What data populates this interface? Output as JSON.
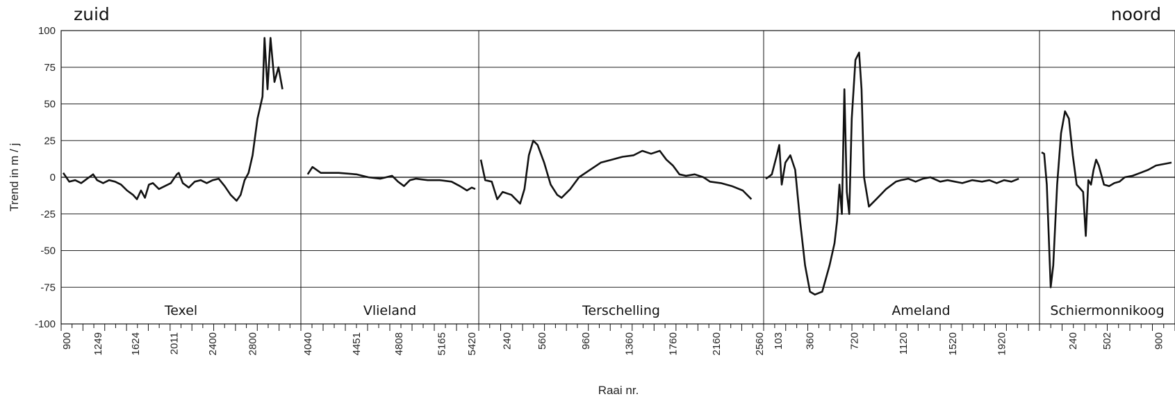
{
  "corner_labels": {
    "left": "zuid",
    "right": "noord"
  },
  "chart_data": {
    "type": "line",
    "title": "",
    "xlabel": "Raai nr.",
    "ylabel": "Trend in m / j",
    "ylim": [
      -100,
      100
    ],
    "yticks": [
      100,
      75,
      50,
      25,
      0,
      -25,
      -50,
      -75,
      -100
    ],
    "grid": true,
    "legend": "none",
    "series_color": "#111111",
    "sections": [
      {
        "name": "Texel",
        "xlim": [
          900,
          3250
        ],
        "xticks": [
          "900",
          "1249",
          "1624",
          "2011",
          "2400",
          "2800"
        ],
        "points": [
          [
            900,
            3
          ],
          [
            960,
            -3
          ],
          [
            1020,
            -2
          ],
          [
            1080,
            -4
          ],
          [
            1140,
            -1
          ],
          [
            1200,
            2
          ],
          [
            1240,
            -2
          ],
          [
            1300,
            -4
          ],
          [
            1360,
            -2
          ],
          [
            1420,
            -3
          ],
          [
            1480,
            -5
          ],
          [
            1540,
            -9
          ],
          [
            1600,
            -12
          ],
          [
            1640,
            -15
          ],
          [
            1680,
            -9
          ],
          [
            1720,
            -14
          ],
          [
            1760,
            -5
          ],
          [
            1800,
            -4
          ],
          [
            1860,
            -8
          ],
          [
            1920,
            -6
          ],
          [
            1980,
            -4
          ],
          [
            2040,
            2
          ],
          [
            2060,
            3
          ],
          [
            2100,
            -4
          ],
          [
            2160,
            -7
          ],
          [
            2220,
            -3
          ],
          [
            2280,
            -2
          ],
          [
            2340,
            -4
          ],
          [
            2400,
            -2
          ],
          [
            2460,
            -1
          ],
          [
            2520,
            -6
          ],
          [
            2580,
            -12
          ],
          [
            2640,
            -16
          ],
          [
            2680,
            -12
          ],
          [
            2720,
            -2
          ],
          [
            2760,
            3
          ],
          [
            2800,
            15
          ],
          [
            2850,
            40
          ],
          [
            2900,
            55
          ],
          [
            2920,
            95
          ],
          [
            2950,
            60
          ],
          [
            2980,
            95
          ],
          [
            3020,
            65
          ],
          [
            3060,
            75
          ],
          [
            3100,
            60
          ]
        ]
      },
      {
        "name": "Vlieland",
        "xlim": [
          4000,
          5450
        ],
        "xticks": [
          "4040",
          "4451",
          "4808",
          "5165",
          "5420"
        ],
        "points": [
          [
            4040,
            2
          ],
          [
            4080,
            7
          ],
          [
            4150,
            3
          ],
          [
            4300,
            3
          ],
          [
            4450,
            2
          ],
          [
            4550,
            0
          ],
          [
            4650,
            -1
          ],
          [
            4750,
            1
          ],
          [
            4800,
            -3
          ],
          [
            4850,
            -6
          ],
          [
            4900,
            -2
          ],
          [
            4950,
            -1
          ],
          [
            5050,
            -2
          ],
          [
            5150,
            -2
          ],
          [
            5250,
            -3
          ],
          [
            5320,
            -6
          ],
          [
            5380,
            -9
          ],
          [
            5420,
            -7
          ],
          [
            5450,
            -8
          ]
        ]
      },
      {
        "name": "Terschelling",
        "xlim": [
          0,
          2560
        ],
        "xticks": [
          "240",
          "560",
          "960",
          "1360",
          "1760",
          "2160",
          "2560"
        ],
        "points": [
          [
            0,
            12
          ],
          [
            40,
            -2
          ],
          [
            100,
            -3
          ],
          [
            150,
            -15
          ],
          [
            200,
            -10
          ],
          [
            280,
            -12
          ],
          [
            360,
            -18
          ],
          [
            400,
            -8
          ],
          [
            440,
            15
          ],
          [
            480,
            25
          ],
          [
            520,
            22
          ],
          [
            580,
            10
          ],
          [
            640,
            -5
          ],
          [
            700,
            -12
          ],
          [
            740,
            -14
          ],
          [
            820,
            -8
          ],
          [
            900,
            0
          ],
          [
            1000,
            5
          ],
          [
            1100,
            10
          ],
          [
            1200,
            12
          ],
          [
            1300,
            14
          ],
          [
            1400,
            15
          ],
          [
            1480,
            18
          ],
          [
            1560,
            16
          ],
          [
            1640,
            18
          ],
          [
            1700,
            12
          ],
          [
            1760,
            8
          ],
          [
            1820,
            2
          ],
          [
            1880,
            1
          ],
          [
            1960,
            2
          ],
          [
            2040,
            0
          ],
          [
            2100,
            -3
          ],
          [
            2200,
            -4
          ],
          [
            2300,
            -6
          ],
          [
            2400,
            -9
          ],
          [
            2480,
            -15
          ]
        ]
      },
      {
        "name": "Ameland",
        "xlim": [
          0,
          2200
        ],
        "xticks": [
          "103",
          "360",
          "720",
          "1120",
          "1520",
          "1920"
        ],
        "points": [
          [
            0,
            -1
          ],
          [
            20,
            0
          ],
          [
            50,
            2
          ],
          [
            90,
            15
          ],
          [
            110,
            22
          ],
          [
            130,
            -5
          ],
          [
            160,
            10
          ],
          [
            200,
            15
          ],
          [
            240,
            5
          ],
          [
            280,
            -30
          ],
          [
            320,
            -60
          ],
          [
            360,
            -78
          ],
          [
            400,
            -80
          ],
          [
            460,
            -78
          ],
          [
            520,
            -60
          ],
          [
            560,
            -45
          ],
          [
            580,
            -30
          ],
          [
            600,
            -5
          ],
          [
            620,
            -25
          ],
          [
            640,
            60
          ],
          [
            660,
            -10
          ],
          [
            680,
            -25
          ],
          [
            700,
            40
          ],
          [
            730,
            80
          ],
          [
            760,
            85
          ],
          [
            780,
            60
          ],
          [
            800,
            0
          ],
          [
            840,
            -20
          ],
          [
            900,
            -15
          ],
          [
            980,
            -8
          ],
          [
            1060,
            -3
          ],
          [
            1100,
            -2
          ],
          [
            1160,
            -1
          ],
          [
            1220,
            -3
          ],
          [
            1280,
            -1
          ],
          [
            1340,
            0
          ],
          [
            1420,
            -3
          ],
          [
            1480,
            -2
          ],
          [
            1540,
            -3
          ],
          [
            1600,
            -4
          ],
          [
            1680,
            -2
          ],
          [
            1760,
            -3
          ],
          [
            1820,
            -2
          ],
          [
            1880,
            -4
          ],
          [
            1940,
            -2
          ],
          [
            2000,
            -3
          ],
          [
            2060,
            -1
          ]
        ]
      },
      {
        "name": "Schiermonnikoog",
        "xlim": [
          0,
          1000
        ],
        "xticks": [
          "240",
          "502",
          "900"
        ],
        "points": [
          [
            0,
            17
          ],
          [
            20,
            16
          ],
          [
            40,
            -5
          ],
          [
            70,
            -75
          ],
          [
            90,
            -60
          ],
          [
            120,
            -5
          ],
          [
            150,
            30
          ],
          [
            180,
            45
          ],
          [
            210,
            40
          ],
          [
            240,
            15
          ],
          [
            270,
            -5
          ],
          [
            300,
            -8
          ],
          [
            320,
            -10
          ],
          [
            340,
            -40
          ],
          [
            360,
            -2
          ],
          [
            380,
            -5
          ],
          [
            400,
            5
          ],
          [
            420,
            12
          ],
          [
            440,
            8
          ],
          [
            480,
            -5
          ],
          [
            520,
            -6
          ],
          [
            560,
            -4
          ],
          [
            600,
            -3
          ],
          [
            640,
            0
          ],
          [
            700,
            1
          ],
          [
            760,
            3
          ],
          [
            820,
            5
          ],
          [
            880,
            8
          ],
          [
            940,
            9
          ],
          [
            1000,
            10
          ]
        ]
      }
    ]
  }
}
